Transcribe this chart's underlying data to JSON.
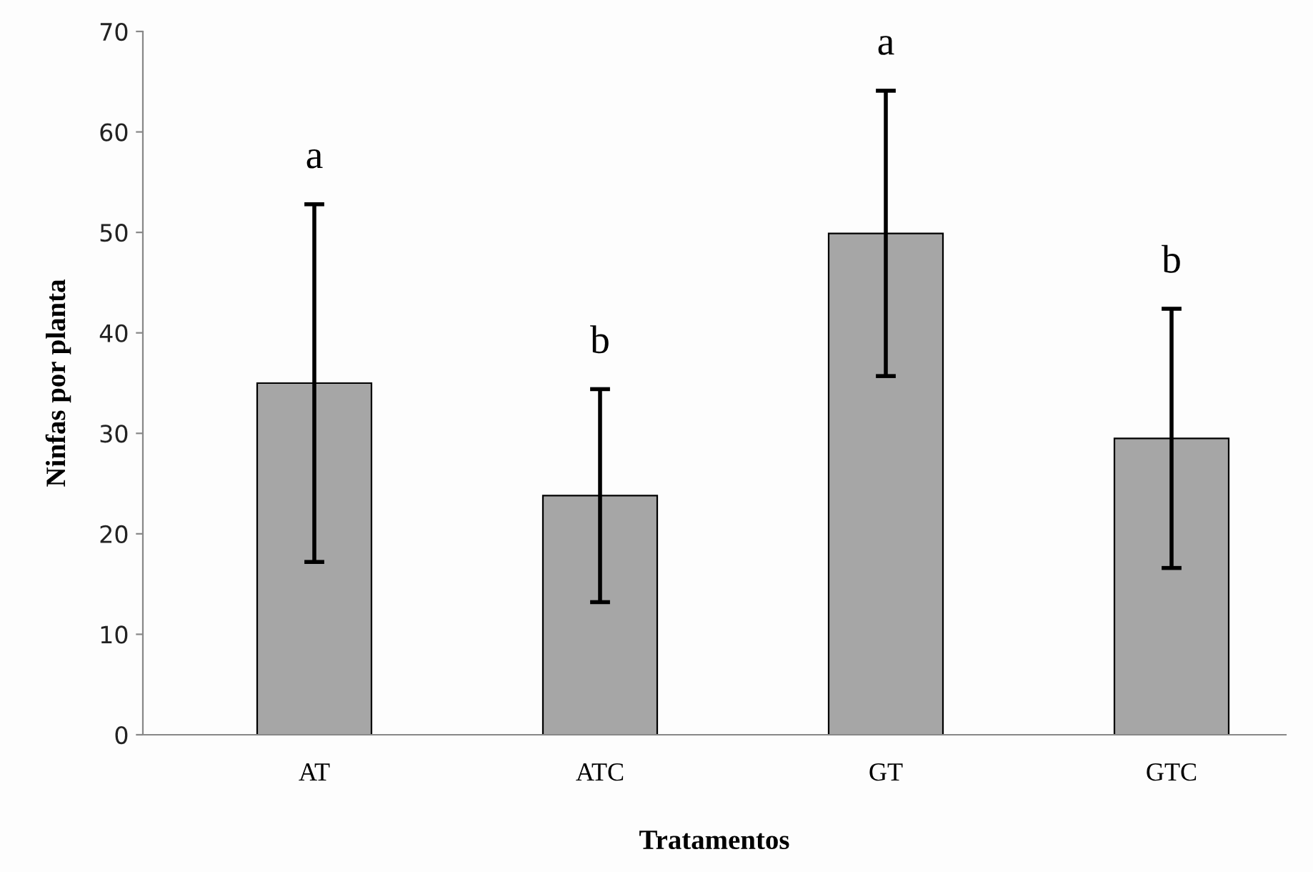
{
  "chart_data": {
    "type": "bar",
    "xlabel": "Tratamentos",
    "ylabel": "Ninfas por planta",
    "categories": [
      "AT",
      "ATC",
      "GT",
      "GTC"
    ],
    "values": [
      35,
      23.8,
      49.9,
      29.5
    ],
    "errors": [
      17.8,
      10.6,
      14.2,
      12.9
    ],
    "color": "#a6a6a6",
    "ylim": [
      0,
      70
    ],
    "yticks": [
      0,
      10,
      20,
      30,
      40,
      50,
      60,
      70
    ],
    "grid": false,
    "annotations": [
      "a",
      "b",
      "a",
      "b"
    ]
  }
}
